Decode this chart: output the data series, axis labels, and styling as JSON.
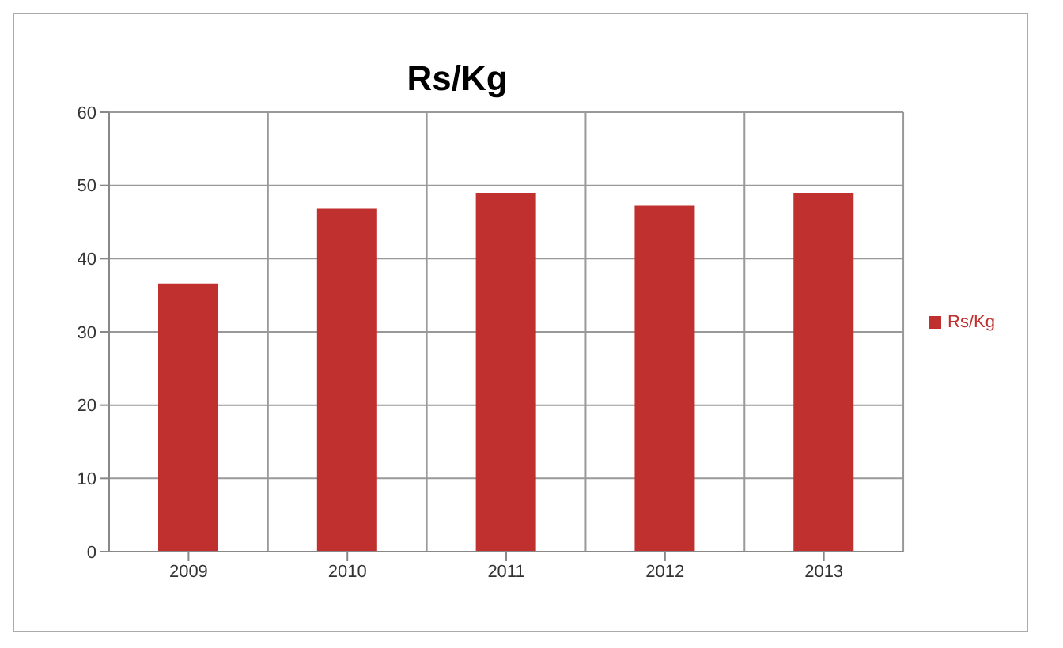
{
  "chart_data": {
    "type": "bar",
    "title": "Rs/Kg",
    "categories": [
      "2009",
      "2010",
      "2011",
      "2012",
      "2013"
    ],
    "series": [
      {
        "name": "Rs/Kg",
        "color": "#c0302e",
        "values": [
          36.6,
          46.9,
          49.0,
          47.2,
          49.0
        ]
      }
    ],
    "ylim": [
      0,
      60
    ],
    "yticks": [
      0,
      10,
      20,
      30,
      40,
      50,
      60
    ],
    "grid": true,
    "legend": "right"
  }
}
